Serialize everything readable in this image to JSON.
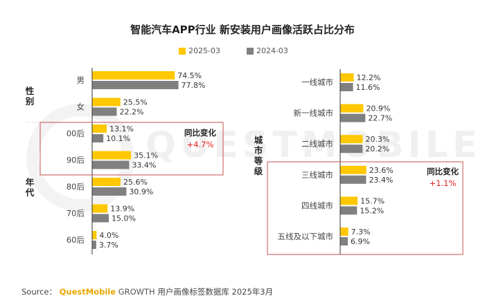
{
  "colors": {
    "series_2025": "#FFC800",
    "series_2024": "#808080",
    "highlight_box": "#c0504d",
    "change_text": "#e02020"
  },
  "title": "智能汽车APP行业 新安装用户画像活跃占比分布",
  "legend": {
    "s1": "2025-03",
    "s2": "2024-03"
  },
  "watermark": "QUESTMOBILE",
  "source": {
    "prefix": "Source：",
    "brand": "QuestMobile",
    "growth": "GROWTH",
    "rest": "用户画像标签数据库 2025年3月"
  },
  "chart_data": [
    {
      "type": "bar",
      "orientation": "horizontal",
      "series_names": [
        "2025-03",
        "2024-03"
      ],
      "groups": [
        {
          "label": "性别",
          "categories": [
            "男",
            "女"
          ],
          "series": [
            {
              "name": "2025-03",
              "values": [
                74.5,
                25.5
              ],
              "labels": [
                "74.5%",
                "25.5%"
              ]
            },
            {
              "name": "2024-03",
              "values": [
                77.8,
                22.2
              ],
              "labels": [
                "77.8%",
                "22.2%"
              ]
            }
          ]
        },
        {
          "label": "年代",
          "categories": [
            "00后",
            "90后",
            "80后",
            "70后",
            "60后"
          ],
          "series": [
            {
              "name": "2025-03",
              "values": [
                13.1,
                35.1,
                25.6,
                13.9,
                4.0
              ],
              "labels": [
                "13.1%",
                "35.1%",
                "25.6%",
                "13.9%",
                "4.0%"
              ]
            },
            {
              "name": "2024-03",
              "values": [
                10.1,
                33.4,
                30.9,
                15.0,
                3.7
              ],
              "labels": [
                "10.1%",
                "33.4%",
                "30.9%",
                "15.0%",
                "3.7%"
              ]
            }
          ]
        }
      ],
      "annotation": {
        "label": "同比变化",
        "value": "+4.7%"
      },
      "max_value": 100
    },
    {
      "type": "bar",
      "orientation": "horizontal",
      "series_names": [
        "2025-03",
        "2024-03"
      ],
      "groups": [
        {
          "label": "城市等级",
          "categories": [
            "一线城市",
            "新一线城市",
            "二线城市",
            "三线城市",
            "四线城市",
            "五线及以下城市"
          ],
          "series": [
            {
              "name": "2025-03",
              "values": [
                12.2,
                20.9,
                20.3,
                23.6,
                15.7,
                7.3
              ],
              "labels": [
                "12.2%",
                "20.9%",
                "20.3%",
                "23.6%",
                "15.7%",
                "7.3%"
              ]
            },
            {
              "name": "2024-03",
              "values": [
                11.6,
                22.7,
                20.2,
                23.4,
                15.2,
                6.9
              ],
              "labels": [
                "11.6%",
                "22.7%",
                "20.2%",
                "23.4%",
                "15.2%",
                "6.9%"
              ]
            }
          ]
        }
      ],
      "annotation": {
        "label": "同比变化",
        "value": "+1.1%"
      },
      "max_value": 100
    }
  ]
}
